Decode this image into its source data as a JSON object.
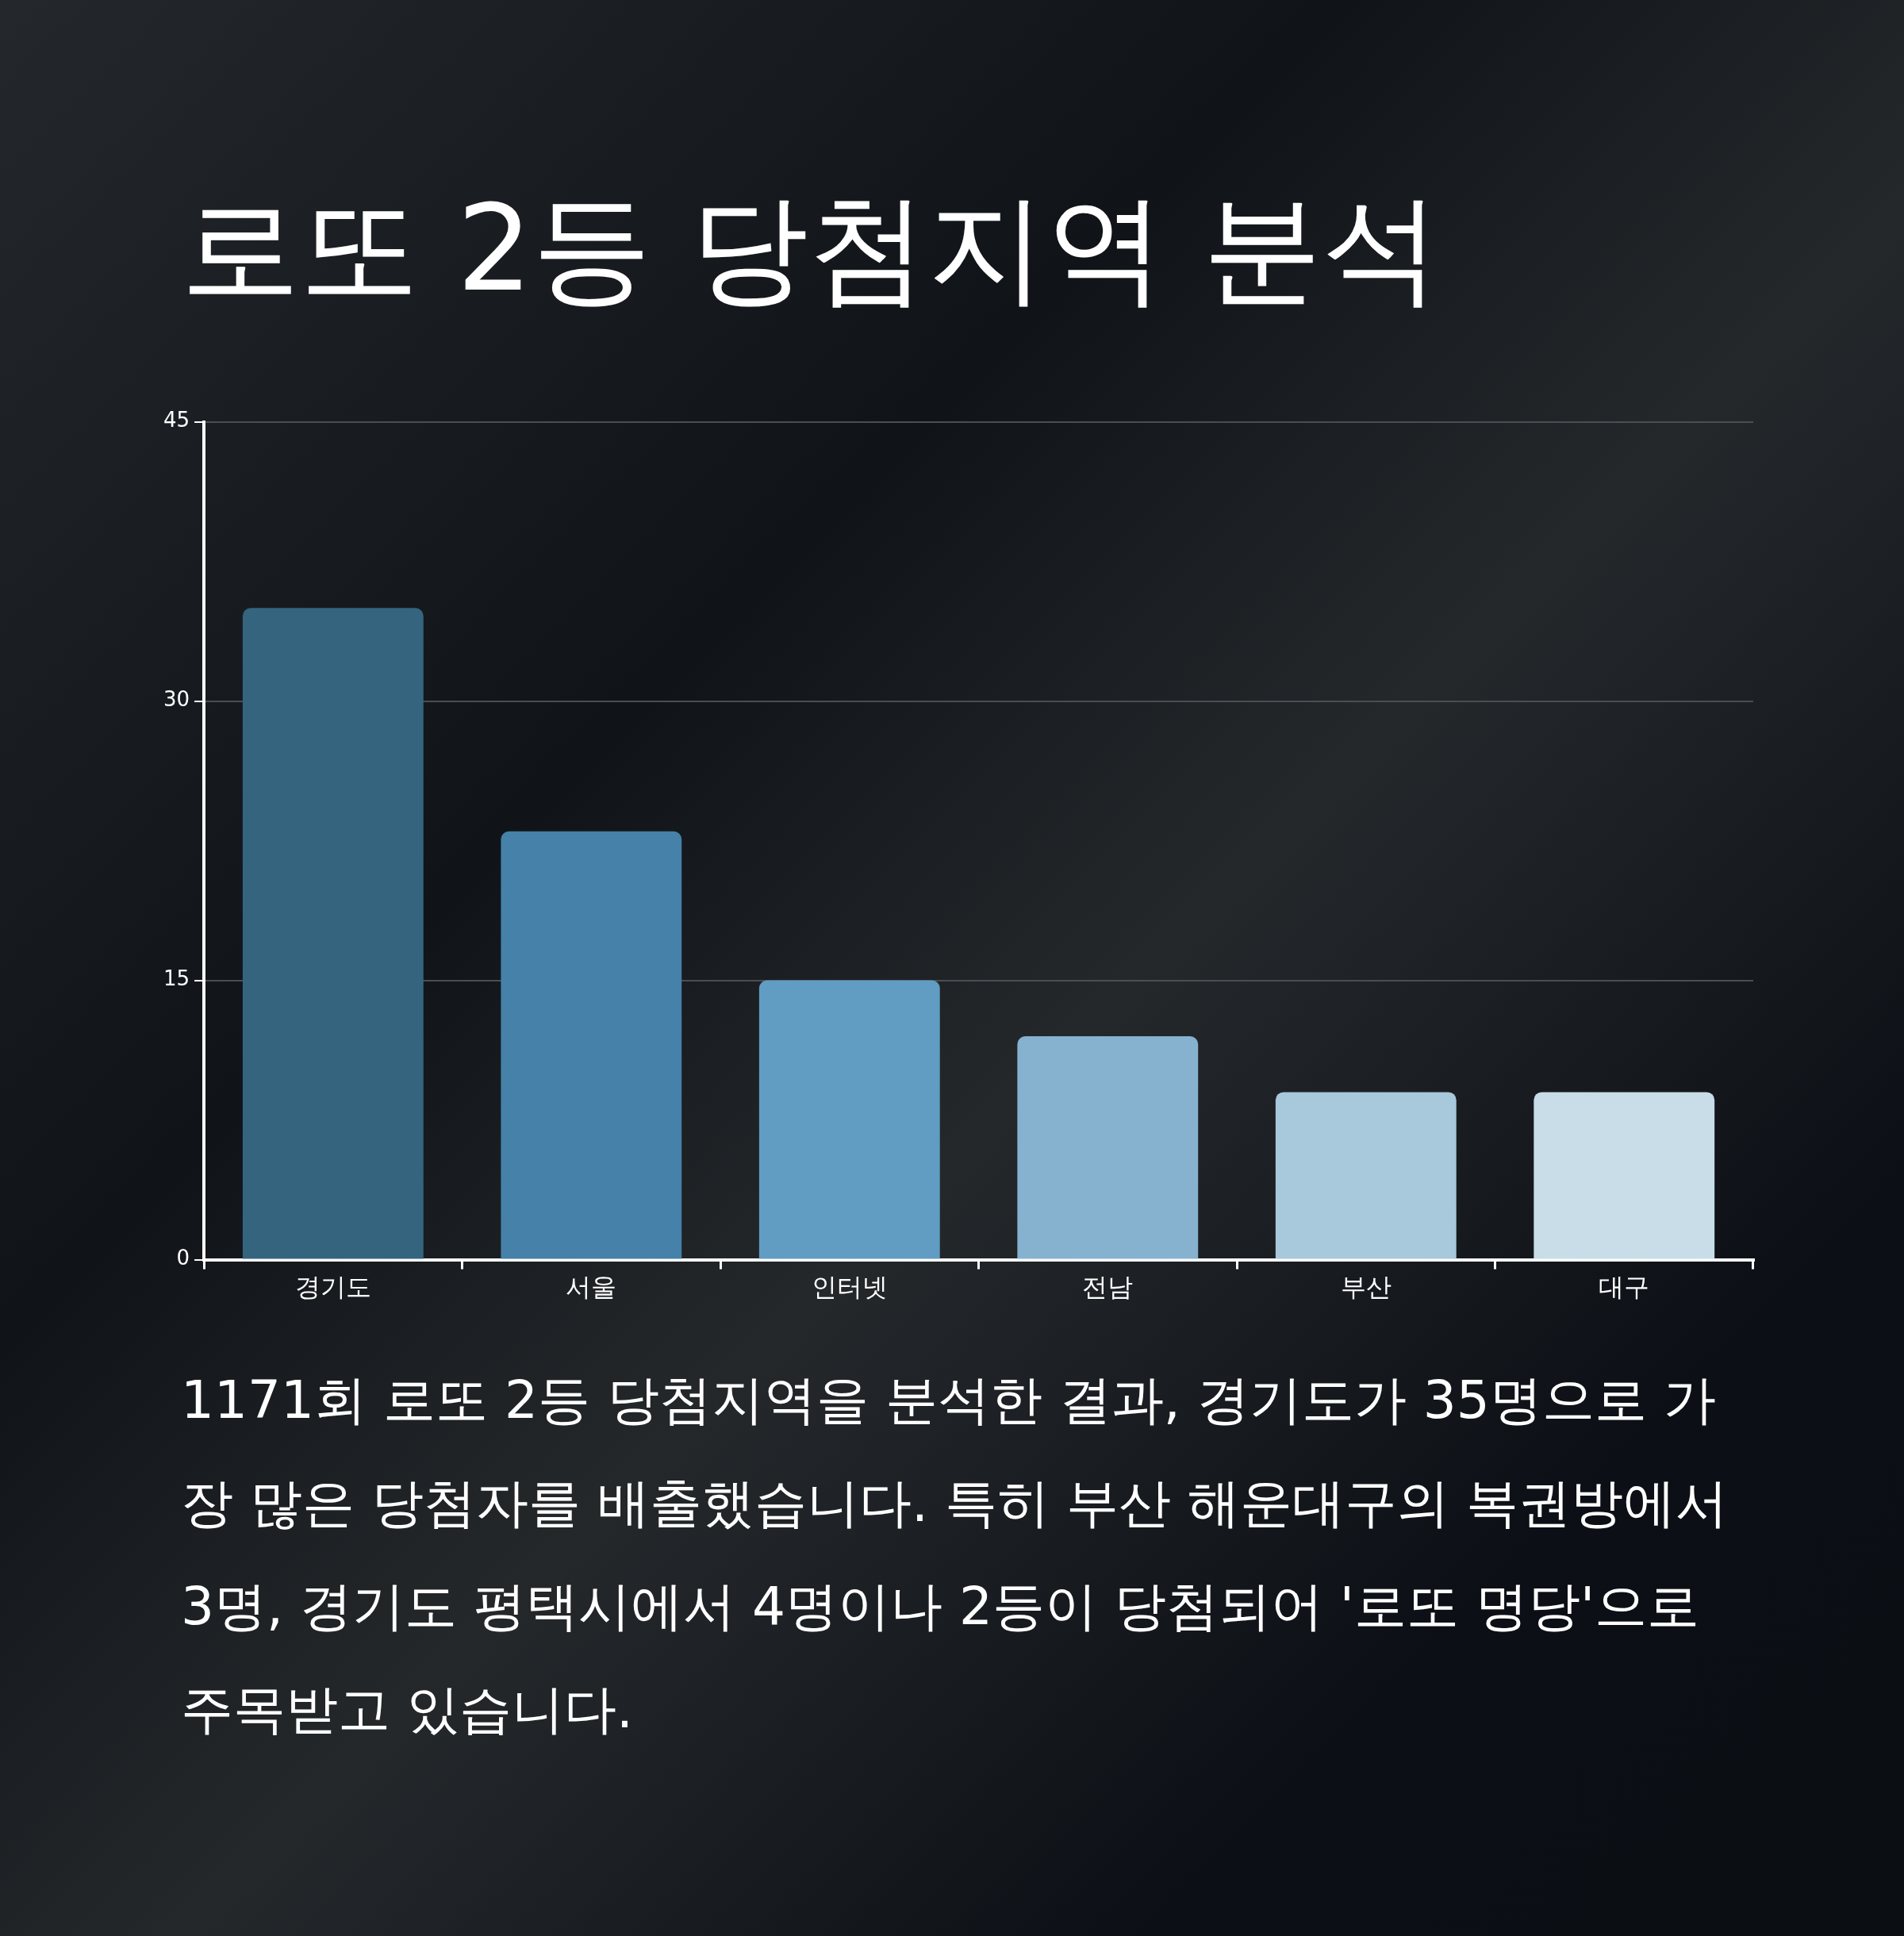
{
  "chart_data": {
    "type": "bar",
    "title": "로또 2등 당첨지역 분석",
    "categories": [
      "경기도",
      "서울",
      "인터넷",
      "전남",
      "부산",
      "대구"
    ],
    "values": [
      35,
      23,
      15,
      12,
      9,
      9
    ],
    "colors": [
      "#35647f",
      "#4581a8",
      "#619cc2",
      "#86b2d0",
      "#a8c8dc",
      "#c8dde8"
    ],
    "ylim": [
      0,
      45
    ],
    "yticks": [
      0,
      15,
      30,
      45
    ],
    "grid": "y",
    "legend": false,
    "annotations": [
      "1171회 로또 2등 당첨지역을 분석한 결과, 경기도가 35명으로 가장 많은 당첨자를 배출했습니다. 특히 부산 해운대구의 복권방에서 3명, 경기도 평택시에서 4명이나 2등이 당첨되어 '로또 명당'으로 주목받고 있습니다."
    ]
  }
}
